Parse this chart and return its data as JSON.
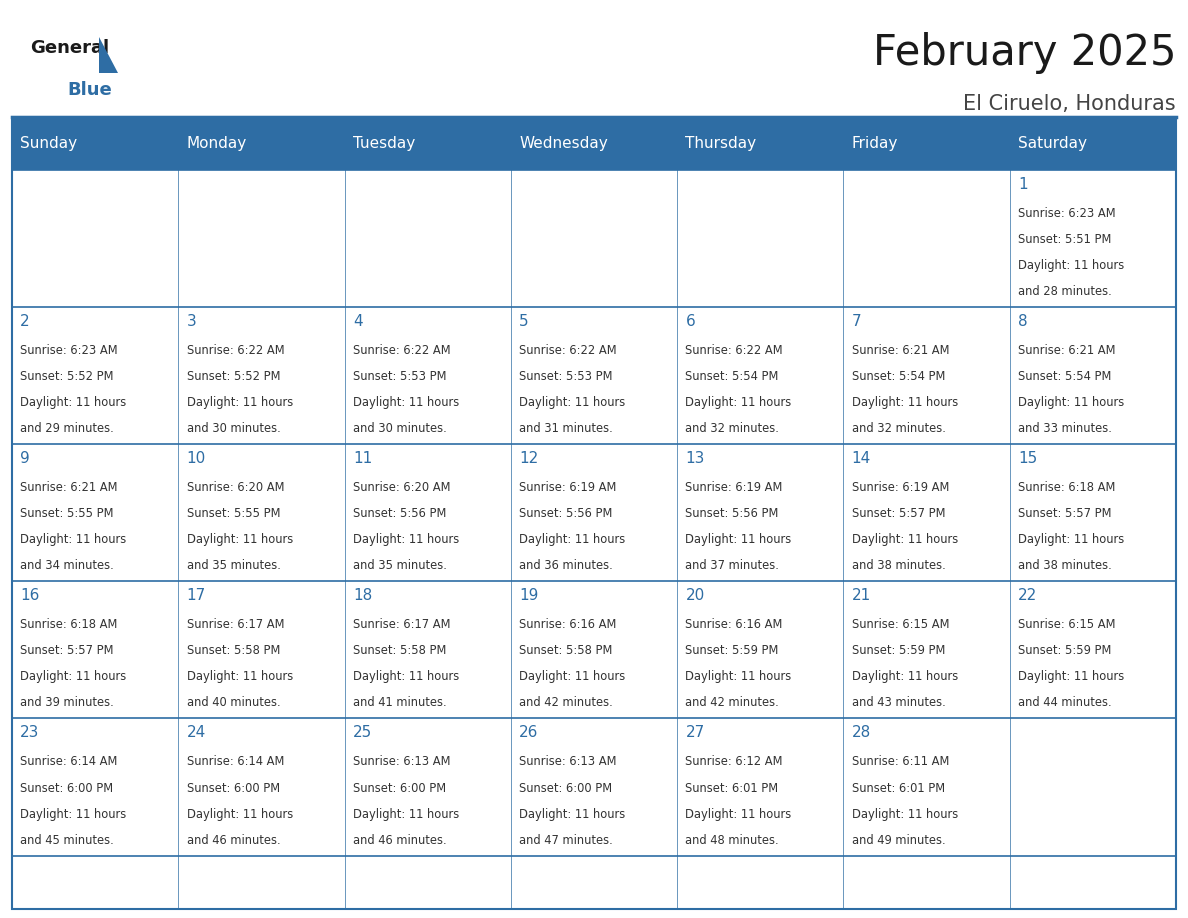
{
  "title": "February 2025",
  "subtitle": "El Ciruelo, Honduras",
  "days_of_week": [
    "Sunday",
    "Monday",
    "Tuesday",
    "Wednesday",
    "Thursday",
    "Friday",
    "Saturday"
  ],
  "header_bg": "#2E6DA4",
  "header_text": "#FFFFFF",
  "cell_bg_white": "#FFFFFF",
  "border_color": "#2E6DA4",
  "day_num_color": "#2E6DA4",
  "text_color": "#333333",
  "logo_general_color": "#1a1a1a",
  "logo_blue_color": "#2E6DA4",
  "calendar": [
    [
      null,
      null,
      null,
      null,
      null,
      null,
      1
    ],
    [
      2,
      3,
      4,
      5,
      6,
      7,
      8
    ],
    [
      9,
      10,
      11,
      12,
      13,
      14,
      15
    ],
    [
      16,
      17,
      18,
      19,
      20,
      21,
      22
    ],
    [
      23,
      24,
      25,
      26,
      27,
      28,
      null
    ]
  ],
  "cell_data": {
    "1": {
      "sunrise": "6:23 AM",
      "sunset": "5:51 PM",
      "hours": 11,
      "minutes": 28
    },
    "2": {
      "sunrise": "6:23 AM",
      "sunset": "5:52 PM",
      "hours": 11,
      "minutes": 29
    },
    "3": {
      "sunrise": "6:22 AM",
      "sunset": "5:52 PM",
      "hours": 11,
      "minutes": 30
    },
    "4": {
      "sunrise": "6:22 AM",
      "sunset": "5:53 PM",
      "hours": 11,
      "minutes": 30
    },
    "5": {
      "sunrise": "6:22 AM",
      "sunset": "5:53 PM",
      "hours": 11,
      "minutes": 31
    },
    "6": {
      "sunrise": "6:22 AM",
      "sunset": "5:54 PM",
      "hours": 11,
      "minutes": 32
    },
    "7": {
      "sunrise": "6:21 AM",
      "sunset": "5:54 PM",
      "hours": 11,
      "minutes": 32
    },
    "8": {
      "sunrise": "6:21 AM",
      "sunset": "5:54 PM",
      "hours": 11,
      "minutes": 33
    },
    "9": {
      "sunrise": "6:21 AM",
      "sunset": "5:55 PM",
      "hours": 11,
      "minutes": 34
    },
    "10": {
      "sunrise": "6:20 AM",
      "sunset": "5:55 PM",
      "hours": 11,
      "minutes": 35
    },
    "11": {
      "sunrise": "6:20 AM",
      "sunset": "5:56 PM",
      "hours": 11,
      "minutes": 35
    },
    "12": {
      "sunrise": "6:19 AM",
      "sunset": "5:56 PM",
      "hours": 11,
      "minutes": 36
    },
    "13": {
      "sunrise": "6:19 AM",
      "sunset": "5:56 PM",
      "hours": 11,
      "minutes": 37
    },
    "14": {
      "sunrise": "6:19 AM",
      "sunset": "5:57 PM",
      "hours": 11,
      "minutes": 38
    },
    "15": {
      "sunrise": "6:18 AM",
      "sunset": "5:57 PM",
      "hours": 11,
      "minutes": 38
    },
    "16": {
      "sunrise": "6:18 AM",
      "sunset": "5:57 PM",
      "hours": 11,
      "minutes": 39
    },
    "17": {
      "sunrise": "6:17 AM",
      "sunset": "5:58 PM",
      "hours": 11,
      "minutes": 40
    },
    "18": {
      "sunrise": "6:17 AM",
      "sunset": "5:58 PM",
      "hours": 11,
      "minutes": 41
    },
    "19": {
      "sunrise": "6:16 AM",
      "sunset": "5:58 PM",
      "hours": 11,
      "minutes": 42
    },
    "20": {
      "sunrise": "6:16 AM",
      "sunset": "5:59 PM",
      "hours": 11,
      "minutes": 42
    },
    "21": {
      "sunrise": "6:15 AM",
      "sunset": "5:59 PM",
      "hours": 11,
      "minutes": 43
    },
    "22": {
      "sunrise": "6:15 AM",
      "sunset": "5:59 PM",
      "hours": 11,
      "minutes": 44
    },
    "23": {
      "sunrise": "6:14 AM",
      "sunset": "6:00 PM",
      "hours": 11,
      "minutes": 45
    },
    "24": {
      "sunrise": "6:14 AM",
      "sunset": "6:00 PM",
      "hours": 11,
      "minutes": 46
    },
    "25": {
      "sunrise": "6:13 AM",
      "sunset": "6:00 PM",
      "hours": 11,
      "minutes": 46
    },
    "26": {
      "sunrise": "6:13 AM",
      "sunset": "6:00 PM",
      "hours": 11,
      "minutes": 47
    },
    "27": {
      "sunrise": "6:12 AM",
      "sunset": "6:01 PM",
      "hours": 11,
      "minutes": 48
    },
    "28": {
      "sunrise": "6:11 AM",
      "sunset": "6:01 PM",
      "hours": 11,
      "minutes": 49
    }
  }
}
